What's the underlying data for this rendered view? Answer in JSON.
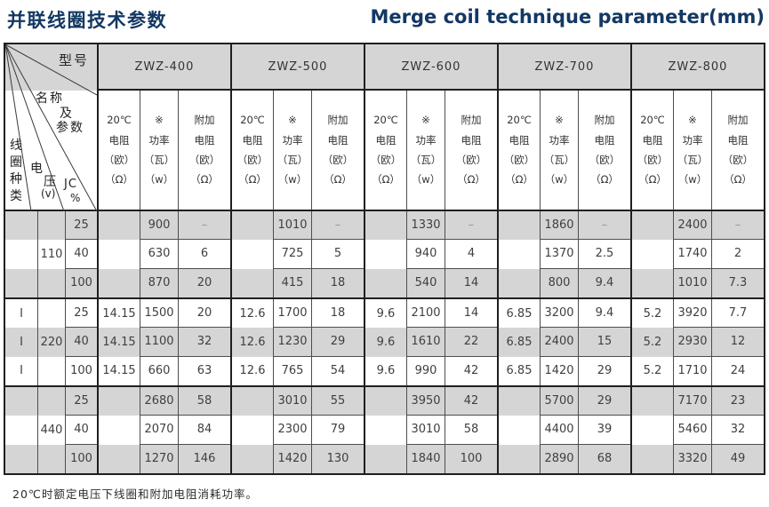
{
  "title_zh": "并联线圈技术参数",
  "title_en": "Merge coil technique parameter(mm)",
  "corner": {
    "model": "型号",
    "name_line1": "名称",
    "name_line2": "及",
    "name_line3": "参数",
    "coil_type": "线圈种类",
    "voltage_char1": "电",
    "voltage_char2": "压",
    "voltage_unit": "(v)",
    "jc": "JC",
    "jc_unit": "%"
  },
  "models": [
    "ZWZ-400",
    "ZWZ-500",
    "ZWZ-600",
    "ZWZ-700",
    "ZWZ-800"
  ],
  "subheaders": [
    [
      "20℃",
      "电阻",
      "（欧）",
      "（Ω）"
    ],
    [
      "※",
      "功率",
      "（瓦）",
      "（w）"
    ],
    [
      "附加",
      "电阻",
      "（欧）",
      "（Ω）"
    ]
  ],
  "groups": [
    {
      "voltage": "110",
      "rows": [
        {
          "coil": "",
          "jc": "25",
          "data": [
            [
              "",
              "900",
              "–"
            ],
            [
              "",
              "1010",
              "–"
            ],
            [
              "",
              "1330",
              "–"
            ],
            [
              "",
              "1860",
              "–"
            ],
            [
              "",
              "2400",
              "–"
            ]
          ]
        },
        {
          "coil": "",
          "jc": "40",
          "data": [
            [
              "",
              "630",
              "6"
            ],
            [
              "",
              "725",
              "5"
            ],
            [
              "",
              "940",
              "4"
            ],
            [
              "",
              "1370",
              "2.5"
            ],
            [
              "",
              "1740",
              "2"
            ]
          ]
        },
        {
          "coil": "",
          "jc": "100",
          "data": [
            [
              "",
              "870",
              "20"
            ],
            [
              "",
              "415",
              "18"
            ],
            [
              "",
              "540",
              "14"
            ],
            [
              "",
              "800",
              "9.4"
            ],
            [
              "",
              "1010",
              "7.3"
            ]
          ]
        }
      ]
    },
    {
      "voltage": "220",
      "rows": [
        {
          "coil": "I",
          "jc": "25",
          "data": [
            [
              "14.15",
              "1500",
              "20"
            ],
            [
              "12.6",
              "1700",
              "18"
            ],
            [
              "9.6",
              "2100",
              "14"
            ],
            [
              "6.85",
              "3200",
              "9.4"
            ],
            [
              "5.2",
              "3920",
              "7.7"
            ]
          ]
        },
        {
          "coil": "I",
          "jc": "40",
          "data": [
            [
              "14.15",
              "1100",
              "32"
            ],
            [
              "12.6",
              "1230",
              "29"
            ],
            [
              "9.6",
              "1610",
              "22"
            ],
            [
              "6.85",
              "2400",
              "15"
            ],
            [
              "5.2",
              "2930",
              "12"
            ]
          ]
        },
        {
          "coil": "I",
          "jc": "100",
          "data": [
            [
              "14.15",
              "660",
              "63"
            ],
            [
              "12.6",
              "765",
              "54"
            ],
            [
              "9.6",
              "990",
              "42"
            ],
            [
              "6.85",
              "1420",
              "29"
            ],
            [
              "5.2",
              "1710",
              "24"
            ]
          ]
        }
      ]
    },
    {
      "voltage": "440",
      "rows": [
        {
          "coil": "",
          "jc": "25",
          "data": [
            [
              "",
              "2680",
              "58"
            ],
            [
              "",
              "3010",
              "55"
            ],
            [
              "",
              "3950",
              "42"
            ],
            [
              "",
              "5700",
              "29"
            ],
            [
              "",
              "7170",
              "23"
            ]
          ]
        },
        {
          "coil": "",
          "jc": "40",
          "data": [
            [
              "",
              "2070",
              "84"
            ],
            [
              "",
              "2300",
              "79"
            ],
            [
              "",
              "3010",
              "58"
            ],
            [
              "",
              "4400",
              "39"
            ],
            [
              "",
              "5460",
              "32"
            ]
          ]
        },
        {
          "coil": "",
          "jc": "100",
          "data": [
            [
              "",
              "1270",
              "146"
            ],
            [
              "",
              "1420",
              "130"
            ],
            [
              "",
              "1840",
              "100"
            ],
            [
              "",
              "2890",
              "68"
            ],
            [
              "",
              "3320",
              "49"
            ]
          ]
        }
      ]
    }
  ],
  "footnote": "20℃时额定电压下线圈和附加电阻消耗功率。",
  "colors": {
    "title": "#133863",
    "row_stripe": "#d5d5d5",
    "thick_border": "#1f1f1f",
    "thin_border": "#4d4d4d"
  }
}
